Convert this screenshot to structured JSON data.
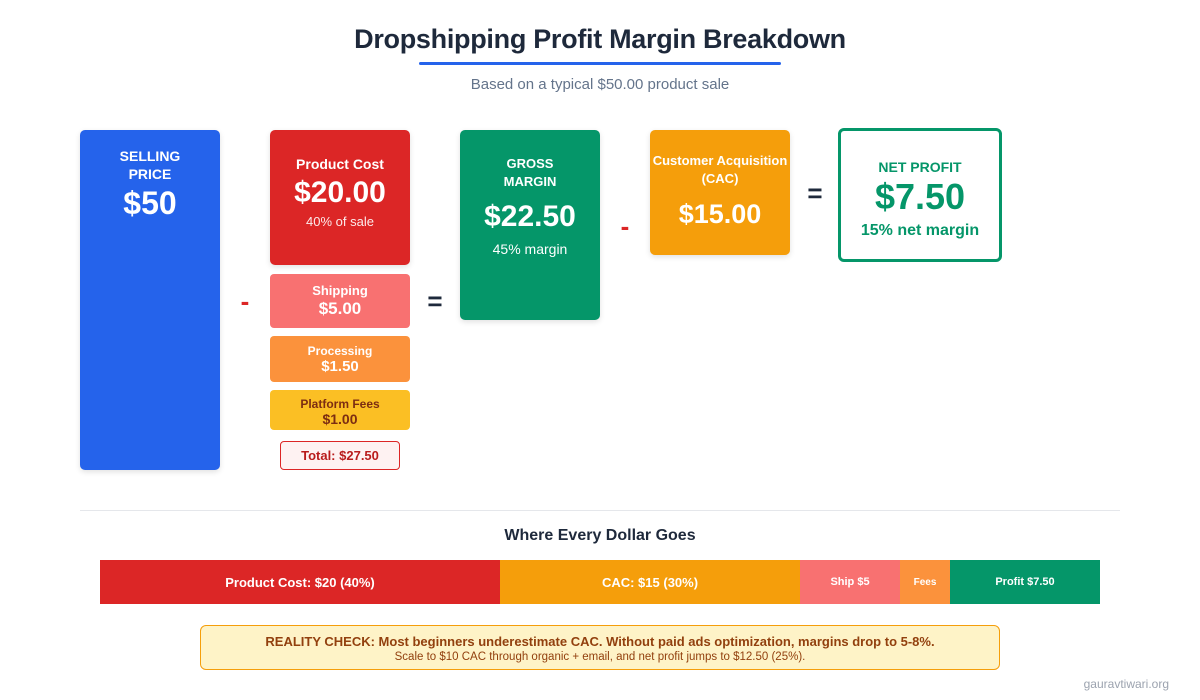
{
  "header": {
    "title": "Dropshipping Profit Margin Breakdown",
    "subtitle": "Based on a typical $50.00 product sale"
  },
  "flow": {
    "selling": {
      "label": "SELLING PRICE",
      "value": "$50"
    },
    "product_cost": {
      "label": "Product Cost",
      "value": "$20.00",
      "note": "40% of sale"
    },
    "shipping": {
      "label": "Shipping",
      "value": "$5.00"
    },
    "processing": {
      "label": "Processing",
      "value": "$1.50"
    },
    "platform_fees": {
      "label": "Platform Fees",
      "value": "$1.00"
    },
    "total": "Total: $27.50",
    "gross_margin": {
      "label": "GROSS MARGIN",
      "value": "$22.50",
      "note": "45% margin"
    },
    "cac": {
      "label": "Customer Acquisition (CAC)",
      "value": "$15.00"
    },
    "net_profit": {
      "label": "NET PROFIT",
      "value": "$7.50",
      "note": "15% net margin"
    },
    "operators": {
      "minus": "-",
      "equals": "="
    }
  },
  "dollar_breakdown": {
    "title": "Where Every Dollar Goes",
    "segments": [
      {
        "label": "Product Cost: $20 (40%)",
        "amount": 20,
        "color": "#dc2626"
      },
      {
        "label": "CAC: $15 (30%)",
        "amount": 15,
        "color": "#f59e0b"
      },
      {
        "label": "Ship $5",
        "amount": 5,
        "color": "#f87171"
      },
      {
        "label": "Fees",
        "amount": 2.5,
        "color": "#fb923c"
      },
      {
        "label": "Profit $7.50",
        "amount": 7.5,
        "color": "#059669"
      }
    ]
  },
  "reality_check": {
    "line1": "REALITY CHECK: Most beginners underestimate CAC. Without paid ads optimization, margins drop to 5-8%.",
    "line2": "Scale to $10 CAC through organic + email, and net profit jumps to $12.50 (25%)."
  },
  "watermark": "gauravtiwari.org",
  "colors": {
    "blue": "#2563eb",
    "red": "#dc2626",
    "green": "#059669",
    "amber": "#f59e0b",
    "light_red": "#f87171",
    "orange": "#fb923c",
    "yellow": "#fbbf24"
  }
}
